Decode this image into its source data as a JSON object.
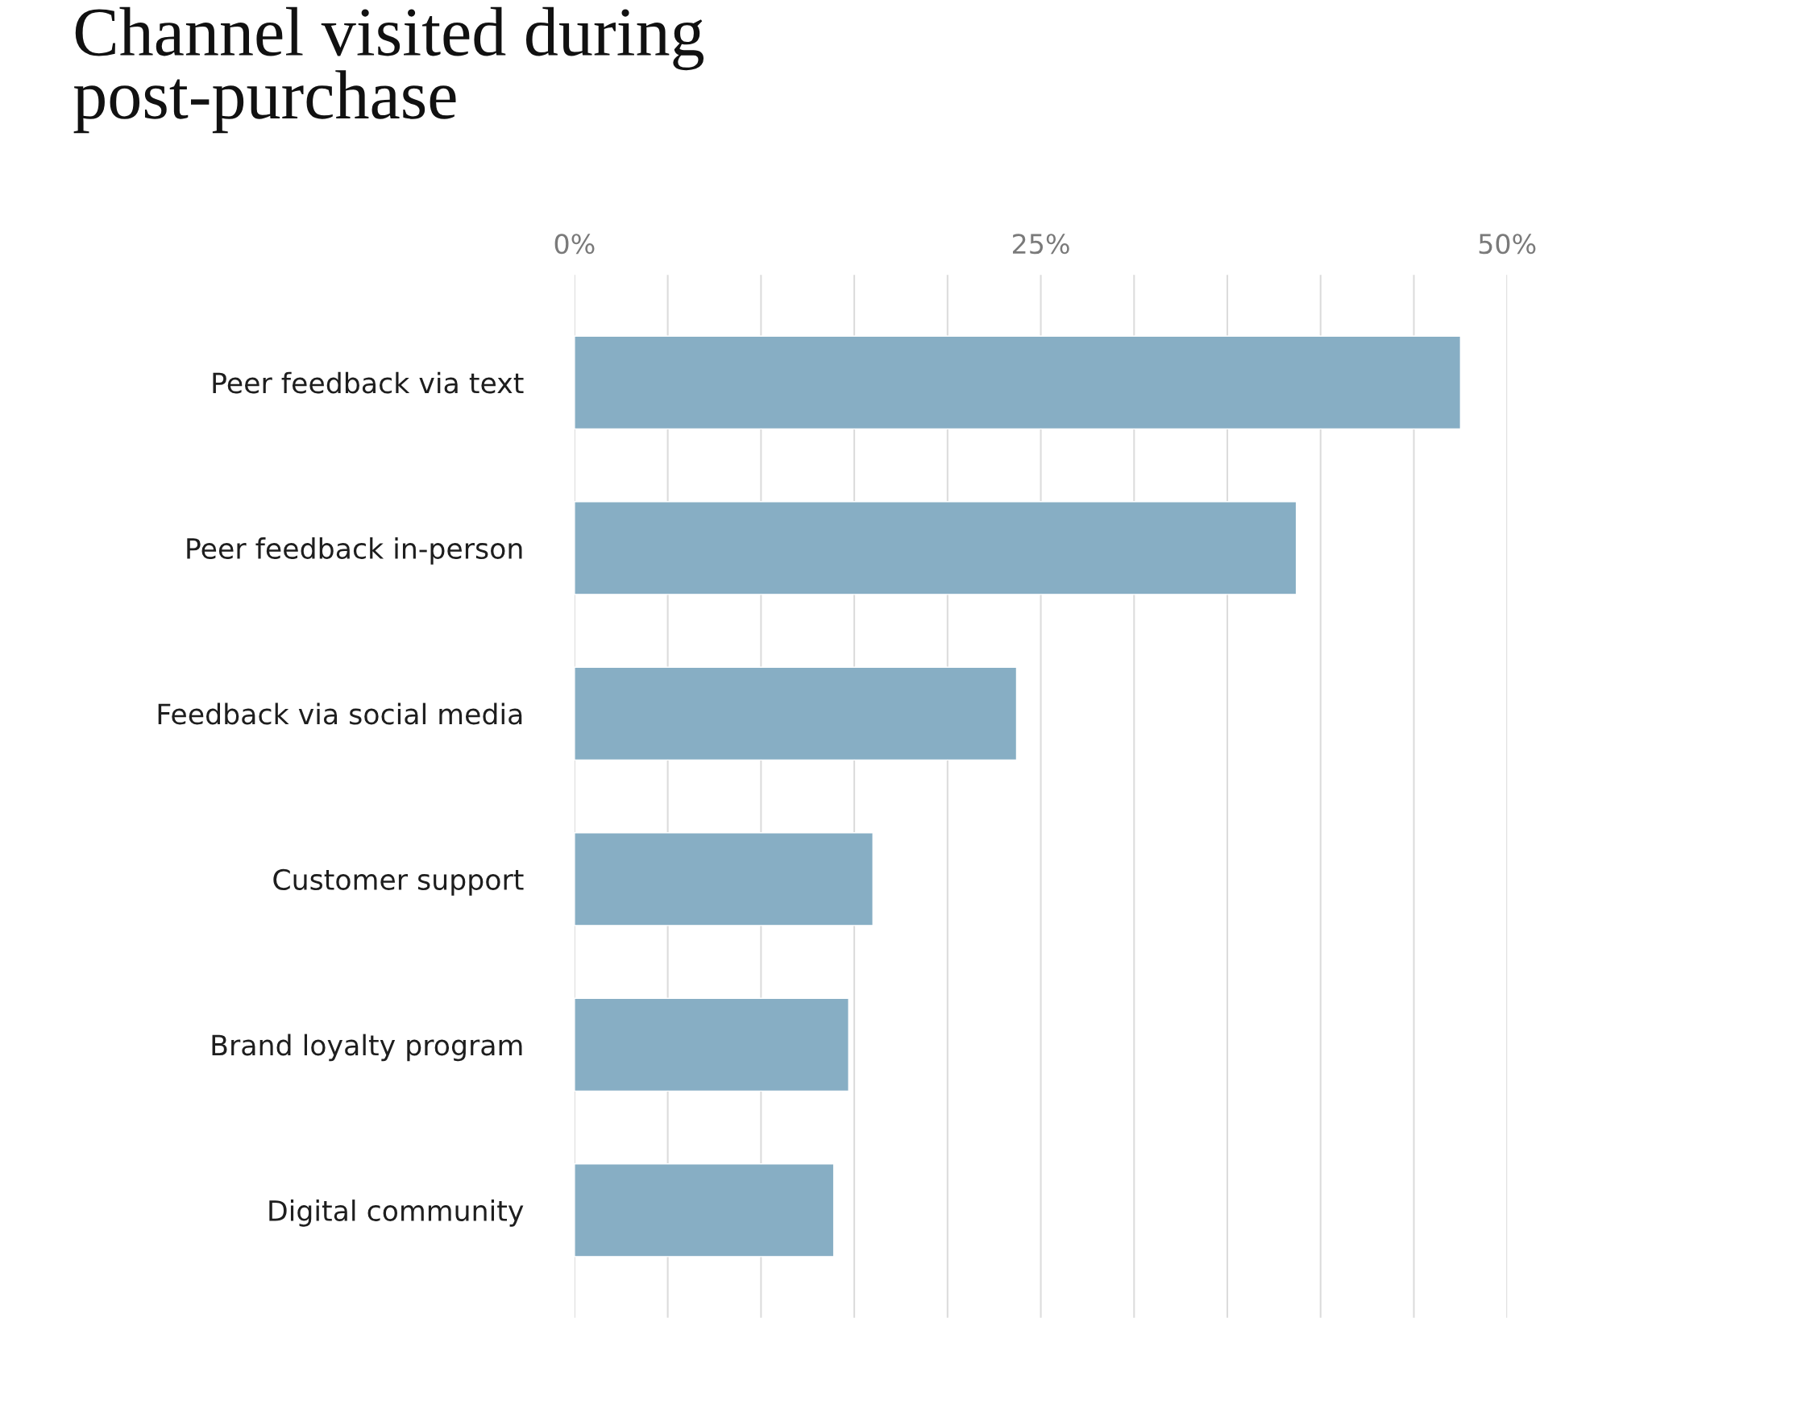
{
  "chart_data": {
    "type": "bar",
    "orientation": "horizontal",
    "title": "Channel visited during\npost-purchase",
    "categories": [
      "Peer feedback via text",
      "Peer feedback in-person",
      "Feedback via social media",
      "Customer support",
      "Brand loyalty program",
      "Digital community"
    ],
    "values": [
      47.5,
      38.7,
      23.7,
      16.0,
      14.7,
      13.9
    ],
    "color": "#87aec4",
    "xlim": [
      0,
      50
    ],
    "xticks": [
      {
        "value": 0,
        "label": "0%"
      },
      {
        "value": 5,
        "label": null
      },
      {
        "value": 10,
        "label": null
      },
      {
        "value": 15,
        "label": null
      },
      {
        "value": 20,
        "label": null
      },
      {
        "value": 25,
        "label": "25%"
      },
      {
        "value": 30,
        "label": null
      },
      {
        "value": 35,
        "label": null
      },
      {
        "value": 40,
        "label": null
      },
      {
        "value": 45,
        "label": null
      },
      {
        "value": 50,
        "label": "50%"
      }
    ],
    "grid": "x"
  }
}
